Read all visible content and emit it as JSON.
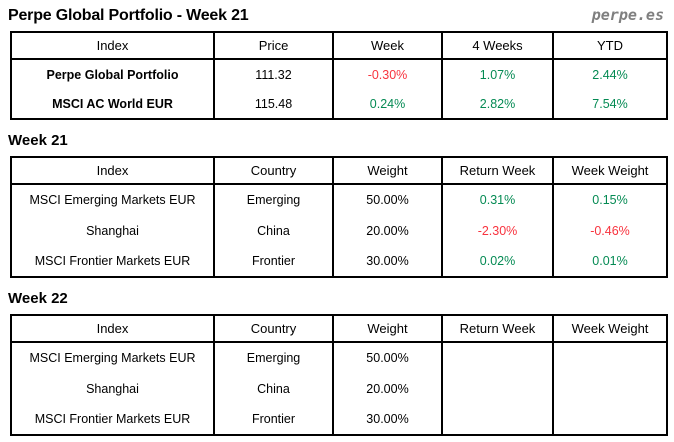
{
  "header": {
    "title": "Perpe Global Portfolio - Week 21",
    "brand": "perpe.es"
  },
  "colors": {
    "positive": "#048A53",
    "negative": "#F8333E",
    "brand": "#7F7F7F"
  },
  "sections": [
    {
      "title": "Week 21"
    },
    {
      "title": "Week 22"
    }
  ],
  "tables": [
    {
      "columns": [
        "Index",
        "Price",
        "Week",
        "4 Weeks",
        "YTD"
      ],
      "rows": [
        {
          "cells": [
            {
              "text": "Perpe Global Portfolio",
              "tone": "plain"
            },
            {
              "text": "111.32",
              "tone": "plain"
            },
            {
              "text": "-0.30%",
              "tone": "neg"
            },
            {
              "text": "1.07%",
              "tone": "pos"
            },
            {
              "text": "2.44%",
              "tone": "pos"
            }
          ]
        },
        {
          "cells": [
            {
              "text": "MSCI AC World EUR",
              "tone": "plain"
            },
            {
              "text": "115.48",
              "tone": "plain"
            },
            {
              "text": "0.24%",
              "tone": "pos"
            },
            {
              "text": "2.82%",
              "tone": "pos"
            },
            {
              "text": "7.54%",
              "tone": "pos"
            }
          ]
        }
      ]
    },
    {
      "columns": [
        "Index",
        "Country",
        "Weight",
        "Return Week",
        "Week Weight"
      ],
      "rows": [
        {
          "cells": [
            {
              "text": "MSCI Emerging Markets EUR",
              "tone": "plain"
            },
            {
              "text": "Emerging",
              "tone": "plain"
            },
            {
              "text": "50.00%",
              "tone": "plain"
            },
            {
              "text": "0.31%",
              "tone": "pos"
            },
            {
              "text": "0.15%",
              "tone": "pos"
            }
          ]
        },
        {
          "cells": [
            {
              "text": "Shanghai",
              "tone": "plain"
            },
            {
              "text": "China",
              "tone": "plain"
            },
            {
              "text": "20.00%",
              "tone": "plain"
            },
            {
              "text": "-2.30%",
              "tone": "neg"
            },
            {
              "text": "-0.46%",
              "tone": "neg"
            }
          ]
        },
        {
          "cells": [
            {
              "text": "MSCI Frontier Markets EUR",
              "tone": "plain"
            },
            {
              "text": "Frontier",
              "tone": "plain"
            },
            {
              "text": "30.00%",
              "tone": "plain"
            },
            {
              "text": "0.02%",
              "tone": "pos"
            },
            {
              "text": "0.01%",
              "tone": "pos"
            }
          ]
        }
      ]
    },
    {
      "columns": [
        "Index",
        "Country",
        "Weight",
        "Return Week",
        "Week Weight"
      ],
      "rows": [
        {
          "cells": [
            {
              "text": "MSCI Emerging Markets EUR",
              "tone": "plain"
            },
            {
              "text": "Emerging",
              "tone": "plain"
            },
            {
              "text": "50.00%",
              "tone": "plain"
            },
            {
              "text": "",
              "tone": "plain"
            },
            {
              "text": "",
              "tone": "plain"
            }
          ]
        },
        {
          "cells": [
            {
              "text": "Shanghai",
              "tone": "plain"
            },
            {
              "text": "China",
              "tone": "plain"
            },
            {
              "text": "20.00%",
              "tone": "plain"
            },
            {
              "text": "",
              "tone": "plain"
            },
            {
              "text": "",
              "tone": "plain"
            }
          ]
        },
        {
          "cells": [
            {
              "text": "MSCI Frontier Markets EUR",
              "tone": "plain"
            },
            {
              "text": "Frontier",
              "tone": "plain"
            },
            {
              "text": "30.00%",
              "tone": "plain"
            },
            {
              "text": "",
              "tone": "plain"
            },
            {
              "text": "",
              "tone": "plain"
            }
          ]
        }
      ]
    }
  ]
}
